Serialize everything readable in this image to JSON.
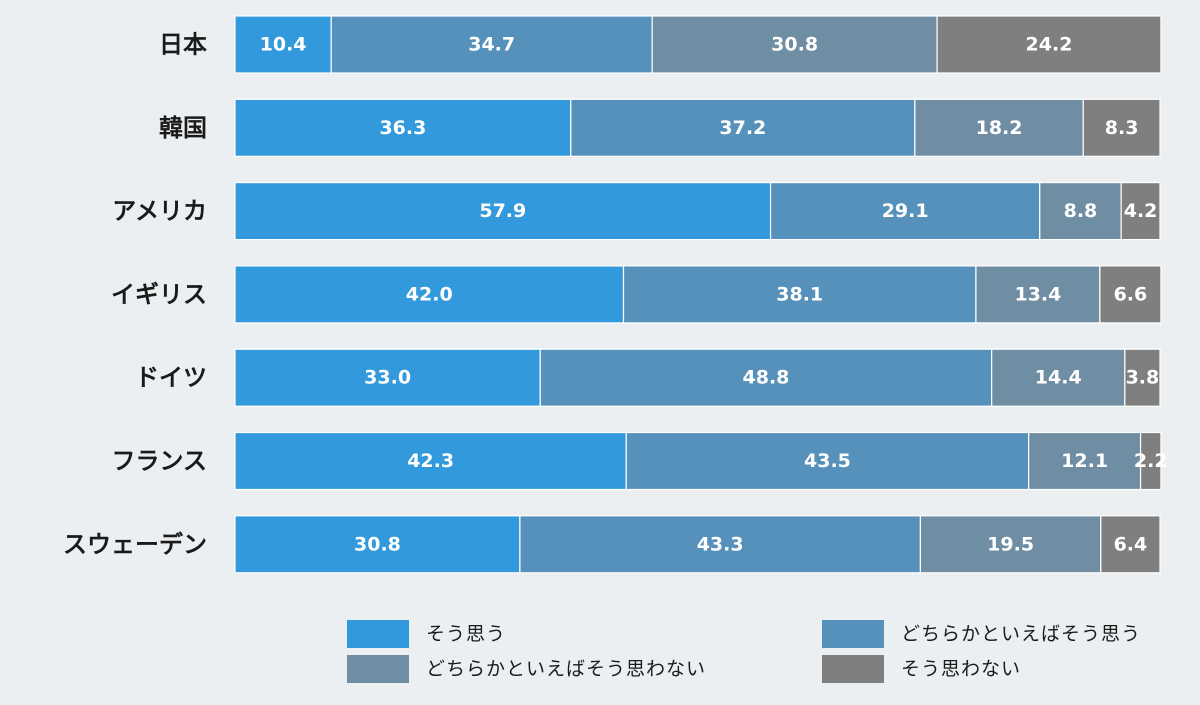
{
  "chart_data": {
    "type": "bar",
    "orientation": "horizontal",
    "stacked": true,
    "xlim": [
      0,
      100
    ],
    "grid": false,
    "legend_placement": "bottom",
    "categories": [
      "日本",
      "韓国",
      "アメリカ",
      "イギリス",
      "ドイツ",
      "フランス",
      "スウェーデン"
    ],
    "series": [
      {
        "name": "そう思う",
        "color": "#3399dd",
        "values": [
          10.4,
          36.3,
          57.9,
          42.0,
          33.0,
          42.3,
          30.8
        ],
        "labels": [
          "10.4",
          "36.3",
          "57.9",
          "42.0",
          "33.0",
          "42.3",
          "30.8"
        ]
      },
      {
        "name": "どちらかといえばそう思う",
        "color": "#5591bb",
        "values": [
          34.7,
          37.2,
          29.1,
          38.1,
          48.8,
          43.5,
          43.3
        ],
        "labels": [
          "34.7",
          "37.2",
          "29.1",
          "38.1",
          "48.8",
          "43.5",
          "43.3"
        ]
      },
      {
        "name": "どちらかといえばそう思わない",
        "color": "#6f8ea3",
        "values": [
          30.8,
          18.2,
          8.8,
          13.4,
          14.4,
          12.1,
          19.5
        ],
        "labels": [
          "30.8",
          "18.2",
          "8.8",
          "13.4",
          "14.4",
          "12.1",
          "19.5"
        ]
      },
      {
        "name": "そう思わない",
        "color": "#7f7f7f",
        "values": [
          24.2,
          8.3,
          4.2,
          6.6,
          3.8,
          2.2,
          6.4
        ],
        "labels": [
          "24.2",
          "8.3",
          "4.2",
          "6.6",
          "3.8",
          "2.2",
          "6.4"
        ]
      }
    ]
  }
}
